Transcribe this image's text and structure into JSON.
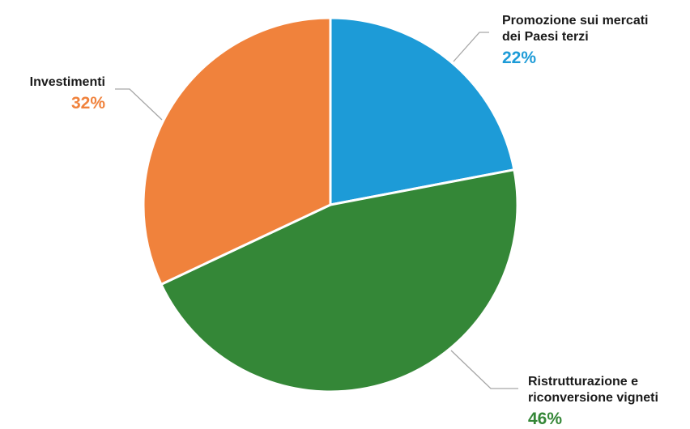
{
  "chart_data": {
    "type": "pie",
    "categories": [
      [
        "Promozione sui mercati",
        "dei Paesi terzi"
      ],
      [
        "Ristrutturazione e",
        "riconversione vigneti"
      ],
      [
        "Investimenti"
      ]
    ],
    "values": [
      22,
      46,
      32
    ],
    "value_labels": [
      "22%",
      "46%",
      "32%"
    ],
    "colors": [
      "#1d9bd7",
      "#348737",
      "#f0823c"
    ],
    "start_angle_deg": 0,
    "direction": "clockwise"
  }
}
